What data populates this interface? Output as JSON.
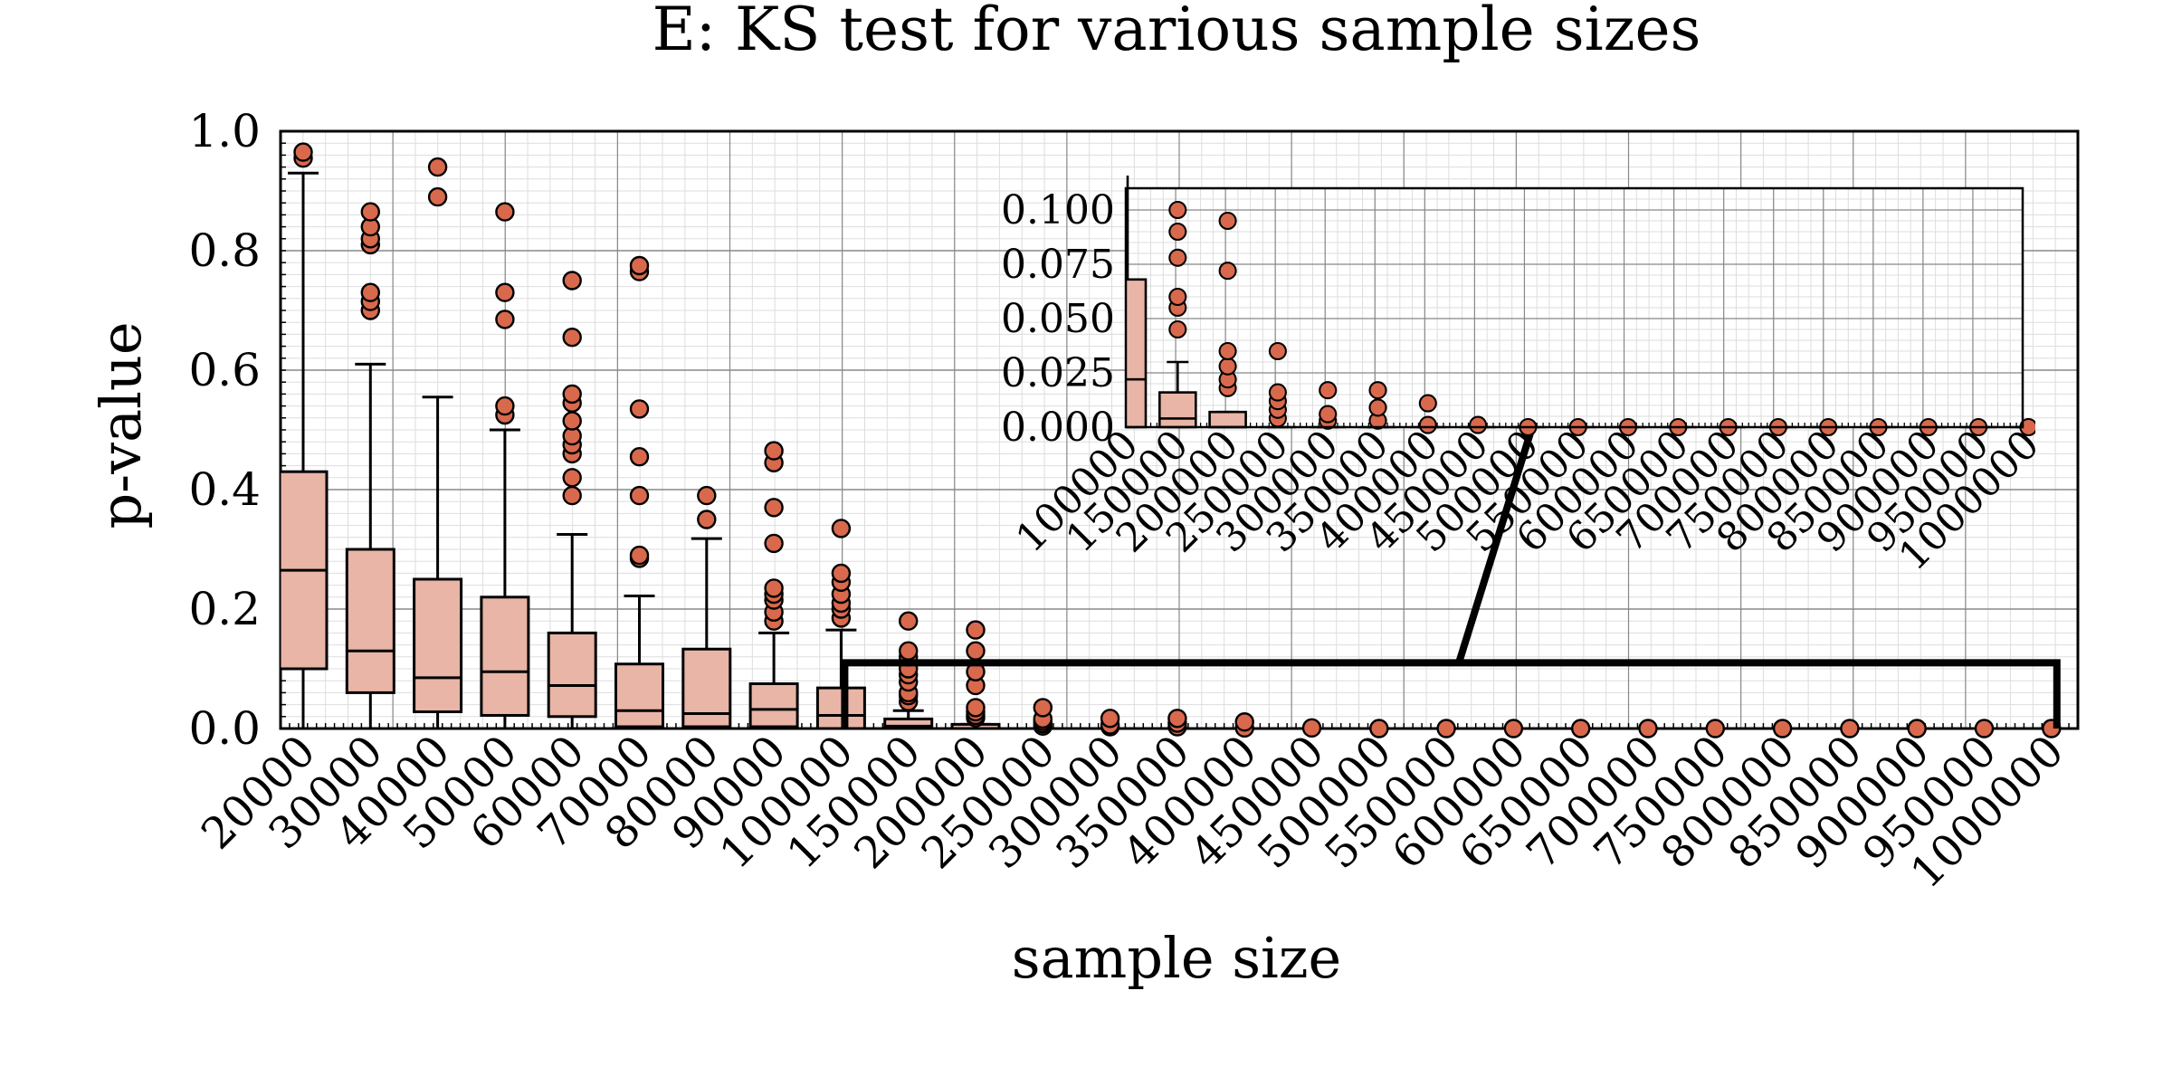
{
  "chart_data": {
    "type": "box",
    "title": "E: KS test for various sample sizes",
    "xlabel": "sample size",
    "ylabel": "p-value",
    "ylim": [
      0,
      1.0
    ],
    "yticks": [
      "0.0",
      "0.2",
      "0.4",
      "0.6",
      "0.8",
      "1.0"
    ],
    "grid": true,
    "colors": {
      "box_fill": "#e8b5a6",
      "outlier_fill": "#d9694c",
      "stroke": "#000000",
      "grid_major": "#888888",
      "grid_minor": "#dddddd"
    },
    "categories": [
      "20000",
      "30000",
      "40000",
      "50000",
      "60000",
      "70000",
      "80000",
      "90000",
      "100000",
      "150000",
      "200000",
      "250000",
      "300000",
      "350000",
      "400000",
      "450000",
      "500000",
      "550000",
      "600000",
      "650000",
      "700000",
      "750000",
      "800000",
      "850000",
      "900000",
      "950000",
      "1000000"
    ],
    "boxes": [
      {
        "whislo": 0.0,
        "q1": 0.1,
        "med": 0.265,
        "q3": 0.43,
        "whishi": 0.93,
        "fliers": [
          0.955,
          0.965
        ]
      },
      {
        "whislo": 0.0,
        "q1": 0.06,
        "med": 0.13,
        "q3": 0.3,
        "whishi": 0.61,
        "fliers": [
          0.7,
          0.715,
          0.73,
          0.81,
          0.82,
          0.84,
          0.865
        ]
      },
      {
        "whislo": 0.0,
        "q1": 0.028,
        "med": 0.085,
        "q3": 0.25,
        "whishi": 0.555,
        "fliers": [
          0.89,
          0.94
        ]
      },
      {
        "whislo": 0.0,
        "q1": 0.022,
        "med": 0.095,
        "q3": 0.22,
        "whishi": 0.5,
        "fliers": [
          0.525,
          0.54,
          0.685,
          0.73,
          0.865
        ]
      },
      {
        "whislo": 0.0,
        "q1": 0.02,
        "med": 0.072,
        "q3": 0.16,
        "whishi": 0.325,
        "fliers": [
          0.39,
          0.42,
          0.46,
          0.475,
          0.49,
          0.515,
          0.545,
          0.56,
          0.655,
          0.75
        ]
      },
      {
        "whislo": 0.0,
        "q1": 0.003,
        "med": 0.03,
        "q3": 0.108,
        "whishi": 0.222,
        "fliers": [
          0.285,
          0.29,
          0.39,
          0.455,
          0.535,
          0.765,
          0.775
        ]
      },
      {
        "whislo": 0.0,
        "q1": 0.003,
        "med": 0.025,
        "q3": 0.133,
        "whishi": 0.318,
        "fliers": [
          0.35,
          0.39
        ]
      },
      {
        "whislo": 0.0,
        "q1": 0.003,
        "med": 0.032,
        "q3": 0.075,
        "whishi": 0.16,
        "fliers": [
          0.18,
          0.195,
          0.215,
          0.225,
          0.235,
          0.31,
          0.37,
          0.445,
          0.465
        ]
      },
      {
        "whislo": 0.0,
        "q1": 0.0,
        "med": 0.022,
        "q3": 0.068,
        "whishi": 0.165,
        "fliers": [
          0.185,
          0.2,
          0.21,
          0.225,
          0.245,
          0.26,
          0.335
        ]
      },
      {
        "whislo": 0.0,
        "q1": 0.0,
        "med": 0.004,
        "q3": 0.016,
        "whishi": 0.03,
        "fliers": [
          0.045,
          0.055,
          0.06,
          0.078,
          0.09,
          0.1,
          0.12,
          0.13,
          0.18
        ]
      },
      {
        "whislo": 0.0,
        "q1": 0.0,
        "med": 0.0,
        "q3": 0.007,
        "whishi": 0.007,
        "fliers": [
          0.018,
          0.022,
          0.028,
          0.035,
          0.072,
          0.095,
          0.13,
          0.165
        ]
      },
      {
        "whislo": 0.0,
        "q1": 0.0,
        "med": 0.0,
        "q3": 0.0,
        "whishi": 0.0,
        "fliers": [
          0.004,
          0.008,
          0.012,
          0.016,
          0.035
        ]
      },
      {
        "whislo": 0.0,
        "q1": 0.0,
        "med": 0.0,
        "q3": 0.0,
        "whishi": 0.0,
        "fliers": [
          0.003,
          0.006,
          0.017
        ]
      },
      {
        "whislo": 0.0,
        "q1": 0.0,
        "med": 0.0,
        "q3": 0.0,
        "whishi": 0.0,
        "fliers": [
          0.003,
          0.009,
          0.017
        ]
      },
      {
        "whislo": 0.0,
        "q1": 0.0,
        "med": 0.0,
        "q3": 0.0,
        "whishi": 0.0,
        "fliers": [
          0.001,
          0.011
        ]
      },
      {
        "whislo": 0.0,
        "q1": 0.0,
        "med": 0.0,
        "q3": 0.0,
        "whishi": 0.0,
        "fliers": [
          0.001
        ]
      },
      {
        "whislo": 0.0,
        "q1": 0.0,
        "med": 0.0,
        "q3": 0.0,
        "whishi": 0.0,
        "fliers": [
          0.0
        ]
      },
      {
        "whislo": 0.0,
        "q1": 0.0,
        "med": 0.0,
        "q3": 0.0,
        "whishi": 0.0,
        "fliers": [
          0.0
        ]
      },
      {
        "whislo": 0.0,
        "q1": 0.0,
        "med": 0.0,
        "q3": 0.0,
        "whishi": 0.0,
        "fliers": [
          0.0
        ]
      },
      {
        "whislo": 0.0,
        "q1": 0.0,
        "med": 0.0,
        "q3": 0.0,
        "whishi": 0.0,
        "fliers": [
          0.0
        ]
      },
      {
        "whislo": 0.0,
        "q1": 0.0,
        "med": 0.0,
        "q3": 0.0,
        "whishi": 0.0,
        "fliers": [
          0.0
        ]
      },
      {
        "whislo": 0.0,
        "q1": 0.0,
        "med": 0.0,
        "q3": 0.0,
        "whishi": 0.0,
        "fliers": [
          0.0
        ]
      },
      {
        "whislo": 0.0,
        "q1": 0.0,
        "med": 0.0,
        "q3": 0.0,
        "whishi": 0.0,
        "fliers": [
          0.0
        ]
      },
      {
        "whislo": 0.0,
        "q1": 0.0,
        "med": 0.0,
        "q3": 0.0,
        "whishi": 0.0,
        "fliers": [
          0.0
        ]
      },
      {
        "whislo": 0.0,
        "q1": 0.0,
        "med": 0.0,
        "q3": 0.0,
        "whishi": 0.0,
        "fliers": [
          0.0
        ]
      },
      {
        "whislo": 0.0,
        "q1": 0.0,
        "med": 0.0,
        "q3": 0.0,
        "whishi": 0.0,
        "fliers": [
          0.0
        ]
      },
      {
        "whislo": 0.0,
        "q1": 0.0,
        "med": 0.0,
        "q3": 0.0,
        "whishi": 0.0,
        "fliers": [
          0.0
        ]
      }
    ],
    "inset": {
      "first_category_index": 8,
      "ylim": [
        0,
        0.11
      ],
      "yticks": [
        "0.000",
        "0.025",
        "0.050",
        "0.075",
        "0.100"
      ],
      "ytick_values": [
        0,
        0.025,
        0.05,
        0.075,
        0.1
      ]
    }
  }
}
